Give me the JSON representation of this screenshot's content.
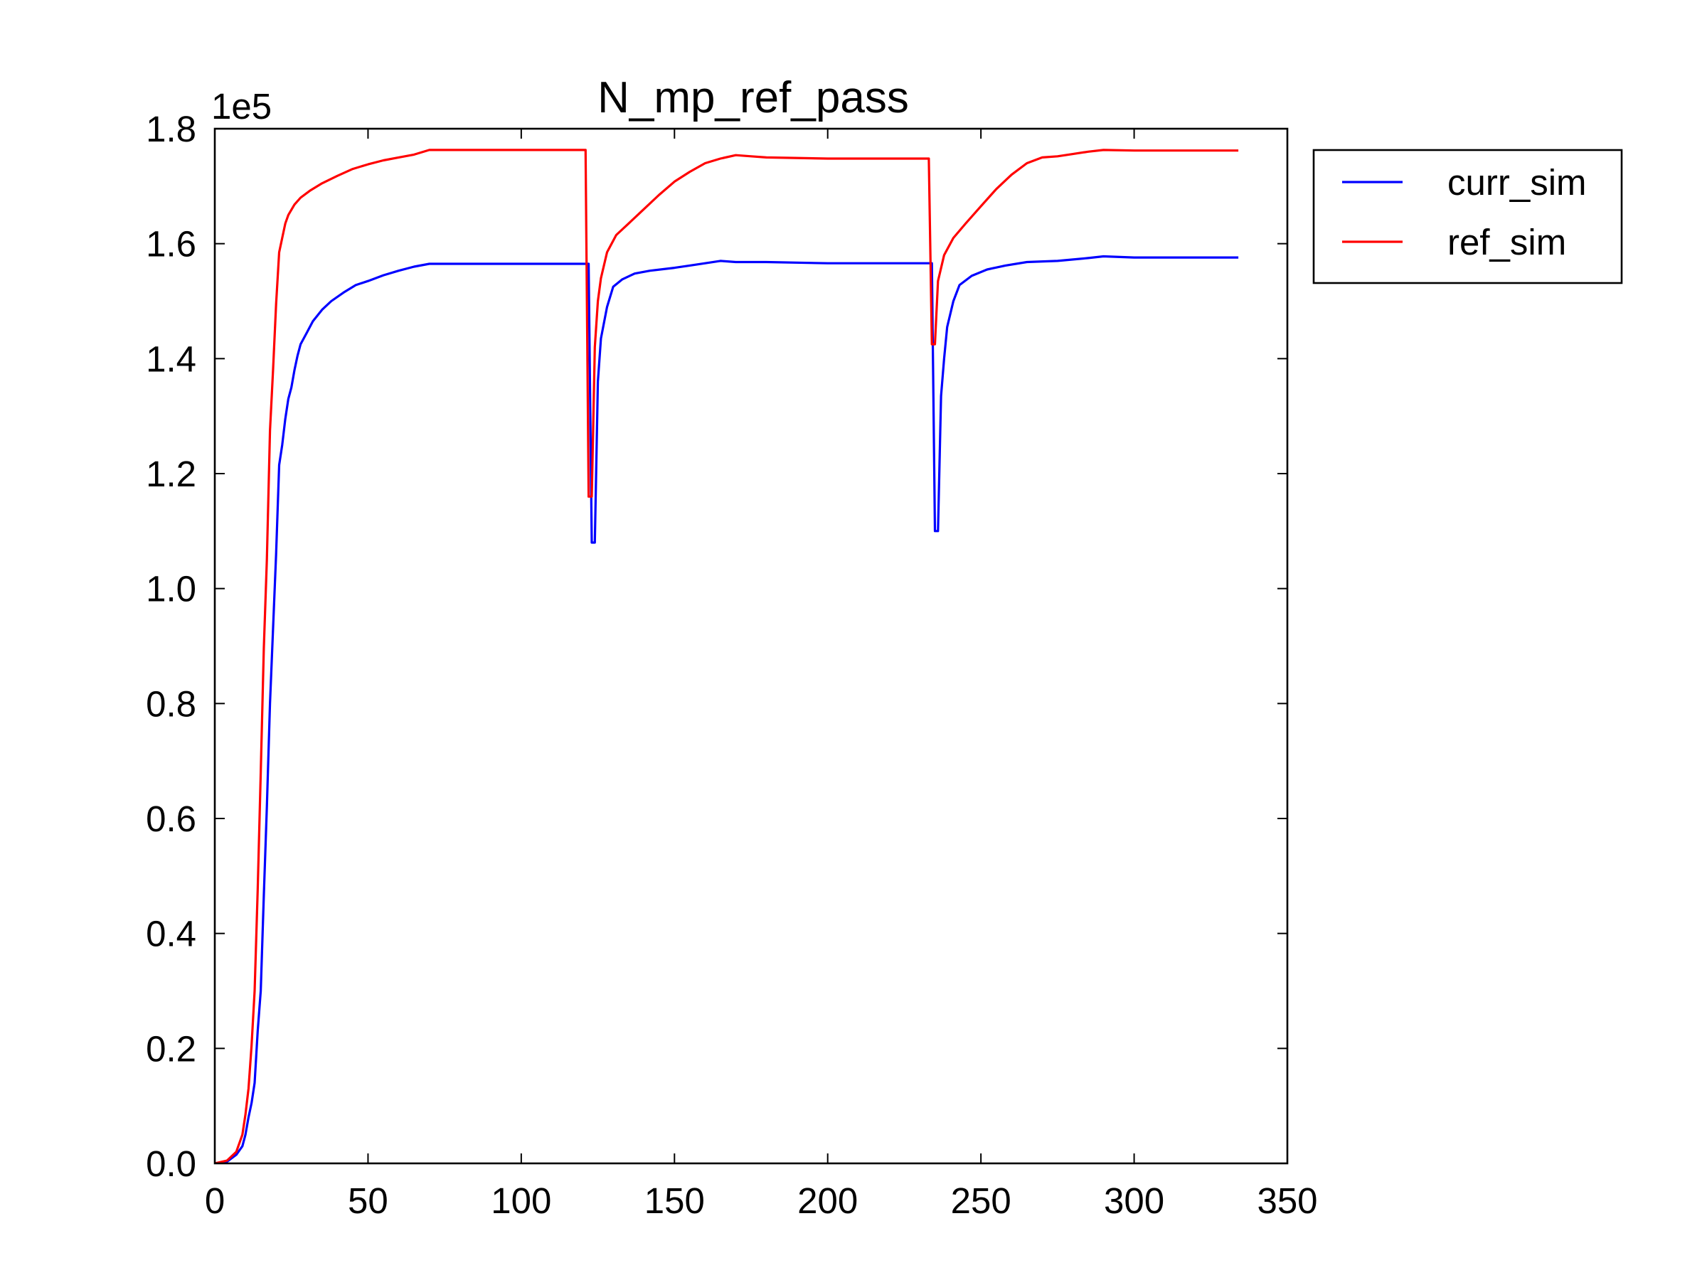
{
  "chart_data": {
    "type": "line",
    "title": "N_mp_ref_pass",
    "xlabel": "",
    "ylabel": "",
    "xlim": [
      0,
      350
    ],
    "ylim": [
      0,
      180000
    ],
    "y_multiplier": "1e5",
    "y_scale": 100000,
    "xticks": [
      0,
      50,
      100,
      150,
      200,
      250,
      300,
      350
    ],
    "xtick_labels": [
      "0",
      "50",
      "100",
      "150",
      "200",
      "250",
      "300",
      "350"
    ],
    "yticks": [
      0,
      20000,
      40000,
      60000,
      80000,
      100000,
      120000,
      140000,
      160000,
      180000
    ],
    "ytick_labels": [
      "0.0",
      "0.2",
      "0.4",
      "0.6",
      "0.8",
      "1.0",
      "1.2",
      "1.4",
      "1.6",
      "1.8"
    ],
    "grid": false,
    "legend_position": "outside-right",
    "series": [
      {
        "name": "curr_sim",
        "color": "#0000ff",
        "points": [
          [
            0,
            0
          ],
          [
            4,
            300
          ],
          [
            7,
            1500
          ],
          [
            9,
            3000
          ],
          [
            10,
            5000
          ],
          [
            11,
            8000
          ],
          [
            12,
            10500
          ],
          [
            13,
            14000
          ],
          [
            14,
            23000
          ],
          [
            15,
            30000
          ],
          [
            16,
            46500
          ],
          [
            17,
            62000
          ],
          [
            18,
            80000
          ],
          [
            19,
            93000
          ],
          [
            20,
            106000
          ],
          [
            21,
            121500
          ],
          [
            22,
            125000
          ],
          [
            23,
            129500
          ],
          [
            24,
            133000
          ],
          [
            25,
            135000
          ],
          [
            26,
            138000
          ],
          [
            27,
            140500
          ],
          [
            28,
            142500
          ],
          [
            30,
            144500
          ],
          [
            32,
            146500
          ],
          [
            35,
            148500
          ],
          [
            38,
            150000
          ],
          [
            42,
            151500
          ],
          [
            46,
            152800
          ],
          [
            50,
            153500
          ],
          [
            55,
            154500
          ],
          [
            60,
            155300
          ],
          [
            65,
            156000
          ],
          [
            70,
            156500
          ],
          [
            100,
            156500
          ],
          [
            122,
            156500
          ],
          [
            123,
            108000
          ],
          [
            124,
            108000
          ],
          [
            125,
            136000
          ],
          [
            126,
            143500
          ],
          [
            128,
            149000
          ],
          [
            130,
            152500
          ],
          [
            133,
            153800
          ],
          [
            137,
            154800
          ],
          [
            142,
            155300
          ],
          [
            150,
            155800
          ],
          [
            155,
            156200
          ],
          [
            160,
            156600
          ],
          [
            165,
            157000
          ],
          [
            170,
            156800
          ],
          [
            175,
            156800
          ],
          [
            180,
            156800
          ],
          [
            200,
            156600
          ],
          [
            234,
            156600
          ],
          [
            235,
            110000
          ],
          [
            236,
            110000
          ],
          [
            237,
            133500
          ],
          [
            238,
            140000
          ],
          [
            239,
            145500
          ],
          [
            241,
            150000
          ],
          [
            243,
            152800
          ],
          [
            247,
            154400
          ],
          [
            252,
            155500
          ],
          [
            258,
            156200
          ],
          [
            265,
            156800
          ],
          [
            275,
            157000
          ],
          [
            285,
            157500
          ],
          [
            290,
            157800
          ],
          [
            300,
            157600
          ],
          [
            334,
            157600
          ]
        ]
      },
      {
        "name": "ref_sim",
        "color": "#ff0000",
        "points": [
          [
            0,
            0
          ],
          [
            4,
            500
          ],
          [
            7,
            2000
          ],
          [
            9,
            5000
          ],
          [
            10,
            8500
          ],
          [
            11,
            13000
          ],
          [
            12,
            20500
          ],
          [
            13,
            30000
          ],
          [
            14,
            47500
          ],
          [
            15,
            68000
          ],
          [
            16,
            89500
          ],
          [
            17,
            105000
          ],
          [
            18,
            127500
          ],
          [
            19,
            138000
          ],
          [
            20,
            149500
          ],
          [
            21,
            158500
          ],
          [
            22,
            161000
          ],
          [
            23,
            163500
          ],
          [
            24,
            165000
          ],
          [
            26,
            166800
          ],
          [
            28,
            168000
          ],
          [
            31,
            169200
          ],
          [
            35,
            170500
          ],
          [
            40,
            171800
          ],
          [
            45,
            173000
          ],
          [
            50,
            173800
          ],
          [
            55,
            174500
          ],
          [
            60,
            175000
          ],
          [
            65,
            175500
          ],
          [
            70,
            176300
          ],
          [
            100,
            176300
          ],
          [
            121,
            176300
          ],
          [
            122,
            116000
          ],
          [
            123,
            116000
          ],
          [
            124,
            142000
          ],
          [
            125,
            150000
          ],
          [
            126,
            154000
          ],
          [
            128,
            158500
          ],
          [
            131,
            161500
          ],
          [
            135,
            163500
          ],
          [
            140,
            166000
          ],
          [
            145,
            168500
          ],
          [
            150,
            170800
          ],
          [
            155,
            172500
          ],
          [
            160,
            174000
          ],
          [
            165,
            174800
          ],
          [
            170,
            175400
          ],
          [
            175,
            175200
          ],
          [
            180,
            175000
          ],
          [
            200,
            174800
          ],
          [
            233,
            174800
          ],
          [
            234,
            142500
          ],
          [
            235,
            142500
          ],
          [
            236,
            153500
          ],
          [
            238,
            158000
          ],
          [
            241,
            161000
          ],
          [
            245,
            163500
          ],
          [
            250,
            166500
          ],
          [
            255,
            169500
          ],
          [
            260,
            172000
          ],
          [
            265,
            174000
          ],
          [
            270,
            175000
          ],
          [
            275,
            175200
          ],
          [
            280,
            175600
          ],
          [
            285,
            176000
          ],
          [
            290,
            176300
          ],
          [
            300,
            176200
          ],
          [
            334,
            176200
          ]
        ]
      }
    ]
  }
}
